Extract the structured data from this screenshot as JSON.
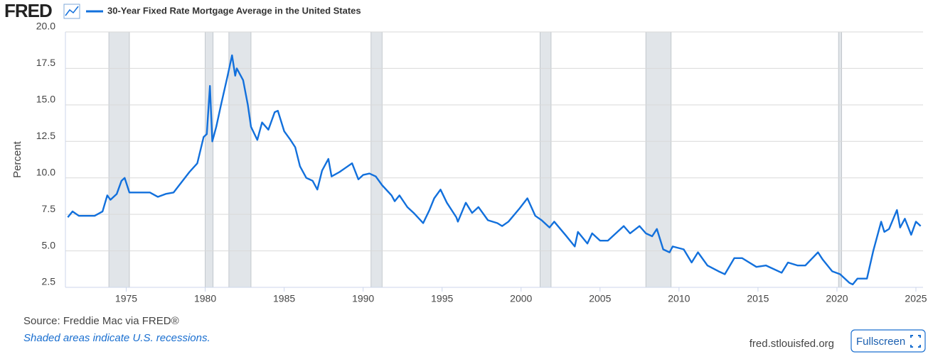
{
  "chart_data": {
    "type": "line",
    "brand": "FRED",
    "ylabel": "Percent",
    "source": "Source: Freddie Mac via FRED®",
    "note": "Shaded areas indicate U.S. recessions.",
    "footer_link": "fred.stlouisfed.org",
    "button": "Fullscreen",
    "grid": true,
    "recession_color": "#e1e5e9",
    "xlim": [
      1971.15,
      2025.45
    ],
    "ylim": [
      2.5,
      20.0
    ],
    "xticks": [
      1975,
      1980,
      1985,
      1990,
      1995,
      2000,
      2005,
      2010,
      2015,
      2020,
      2025
    ],
    "yticks": [
      2.5,
      {
        "value": 5,
        "label": "5.0"
      },
      7.5,
      {
        "value": 10,
        "label": "10.0"
      },
      12.5,
      {
        "value": 15,
        "label": "15.0"
      },
      17.5,
      {
        "value": 20,
        "label": "20.0"
      }
    ],
    "recessions": [
      [
        1973.9,
        1975.2
      ],
      [
        1980.0,
        1980.5
      ],
      [
        1981.5,
        1982.9
      ],
      [
        1990.5,
        1991.2
      ],
      [
        2001.2,
        2001.9
      ],
      [
        2007.9,
        2009.5
      ],
      [
        2020.1,
        2020.3
      ]
    ],
    "x": [
      1971.3,
      1971.6,
      1972.0,
      1972.5,
      1973.0,
      1973.5,
      1973.8,
      1974.0,
      1974.4,
      1974.7,
      1974.9,
      1975.2,
      1975.6,
      1976.0,
      1976.5,
      1977.0,
      1977.5,
      1978.0,
      1978.5,
      1979.0,
      1979.5,
      1979.9,
      1980.1,
      1980.3,
      1980.45,
      1980.7,
      1981.0,
      1981.4,
      1981.7,
      1981.9,
      1982.0,
      1982.4,
      1982.7,
      1982.9,
      1983.3,
      1983.6,
      1984.0,
      1984.4,
      1984.6,
      1985.0,
      1985.4,
      1985.7,
      1986.0,
      1986.4,
      1986.8,
      1987.1,
      1987.4,
      1987.8,
      1988.0,
      1988.5,
      1988.9,
      1989.3,
      1989.7,
      1990.0,
      1990.4,
      1990.8,
      1991.2,
      1991.8,
      1992.0,
      1992.3,
      1992.8,
      1993.2,
      1993.8,
      1994.2,
      1994.5,
      1994.9,
      1995.3,
      1995.9,
      1996.0,
      1996.5,
      1996.9,
      1997.3,
      1997.9,
      1998.5,
      1998.8,
      1999.2,
      1999.9,
      2000.4,
      2000.9,
      2001.3,
      2001.8,
      2002.1,
      2002.8,
      2003.4,
      2003.6,
      2004.2,
      2004.5,
      2005.0,
      2005.5,
      2006.5,
      2006.9,
      2007.5,
      2007.9,
      2008.3,
      2008.6,
      2009.0,
      2009.4,
      2009.6,
      2010.3,
      2010.8,
      2011.2,
      2011.8,
      2012.5,
      2012.9,
      2013.5,
      2014.0,
      2014.9,
      2015.5,
      2016.5,
      2016.9,
      2017.5,
      2018.0,
      2018.8,
      2019.1,
      2019.7,
      2020.2,
      2020.8,
      2021.0,
      2021.3,
      2021.9,
      2022.3,
      2022.8,
      2023.0,
      2023.3,
      2023.8,
      2024.0,
      2024.3,
      2024.7,
      2025.0,
      2025.3
    ],
    "series": [
      {
        "name": "30-Year Fixed Rate Mortgage Average in the United States",
        "color": "#1270dc",
        "values": [
          7.3,
          7.7,
          7.4,
          7.4,
          7.4,
          7.7,
          8.8,
          8.5,
          8.9,
          9.8,
          10.0,
          9.0,
          9.0,
          9.0,
          9.0,
          8.7,
          8.9,
          9.0,
          9.7,
          10.4,
          11.0,
          12.8,
          13.0,
          16.3,
          12.5,
          13.5,
          15.0,
          16.9,
          18.4,
          17.0,
          17.5,
          16.7,
          15.0,
          13.5,
          12.6,
          13.8,
          13.3,
          14.5,
          14.6,
          13.2,
          12.6,
          12.1,
          10.8,
          10.0,
          9.8,
          9.2,
          10.5,
          11.3,
          10.1,
          10.4,
          10.7,
          11.0,
          9.9,
          10.2,
          10.3,
          10.1,
          9.5,
          8.8,
          8.4,
          8.8,
          8.0,
          7.6,
          6.9,
          7.8,
          8.6,
          9.2,
          8.3,
          7.3,
          7.0,
          8.3,
          7.6,
          8.0,
          7.1,
          6.9,
          6.7,
          7.0,
          7.9,
          8.6,
          7.4,
          7.1,
          6.6,
          7.0,
          6.1,
          5.3,
          6.3,
          5.5,
          6.2,
          5.7,
          5.7,
          6.7,
          6.2,
          6.7,
          6.2,
          6.0,
          6.5,
          5.1,
          4.9,
          5.3,
          5.1,
          4.2,
          4.9,
          4.0,
          3.6,
          3.4,
          4.5,
          4.5,
          3.9,
          4.0,
          3.5,
          4.2,
          4.0,
          4.0,
          4.9,
          4.4,
          3.6,
          3.4,
          2.8,
          2.7,
          3.1,
          3.1,
          5.0,
          7.0,
          6.3,
          6.5,
          7.8,
          6.6,
          7.2,
          6.1,
          7.0,
          6.7
        ]
      }
    ]
  }
}
